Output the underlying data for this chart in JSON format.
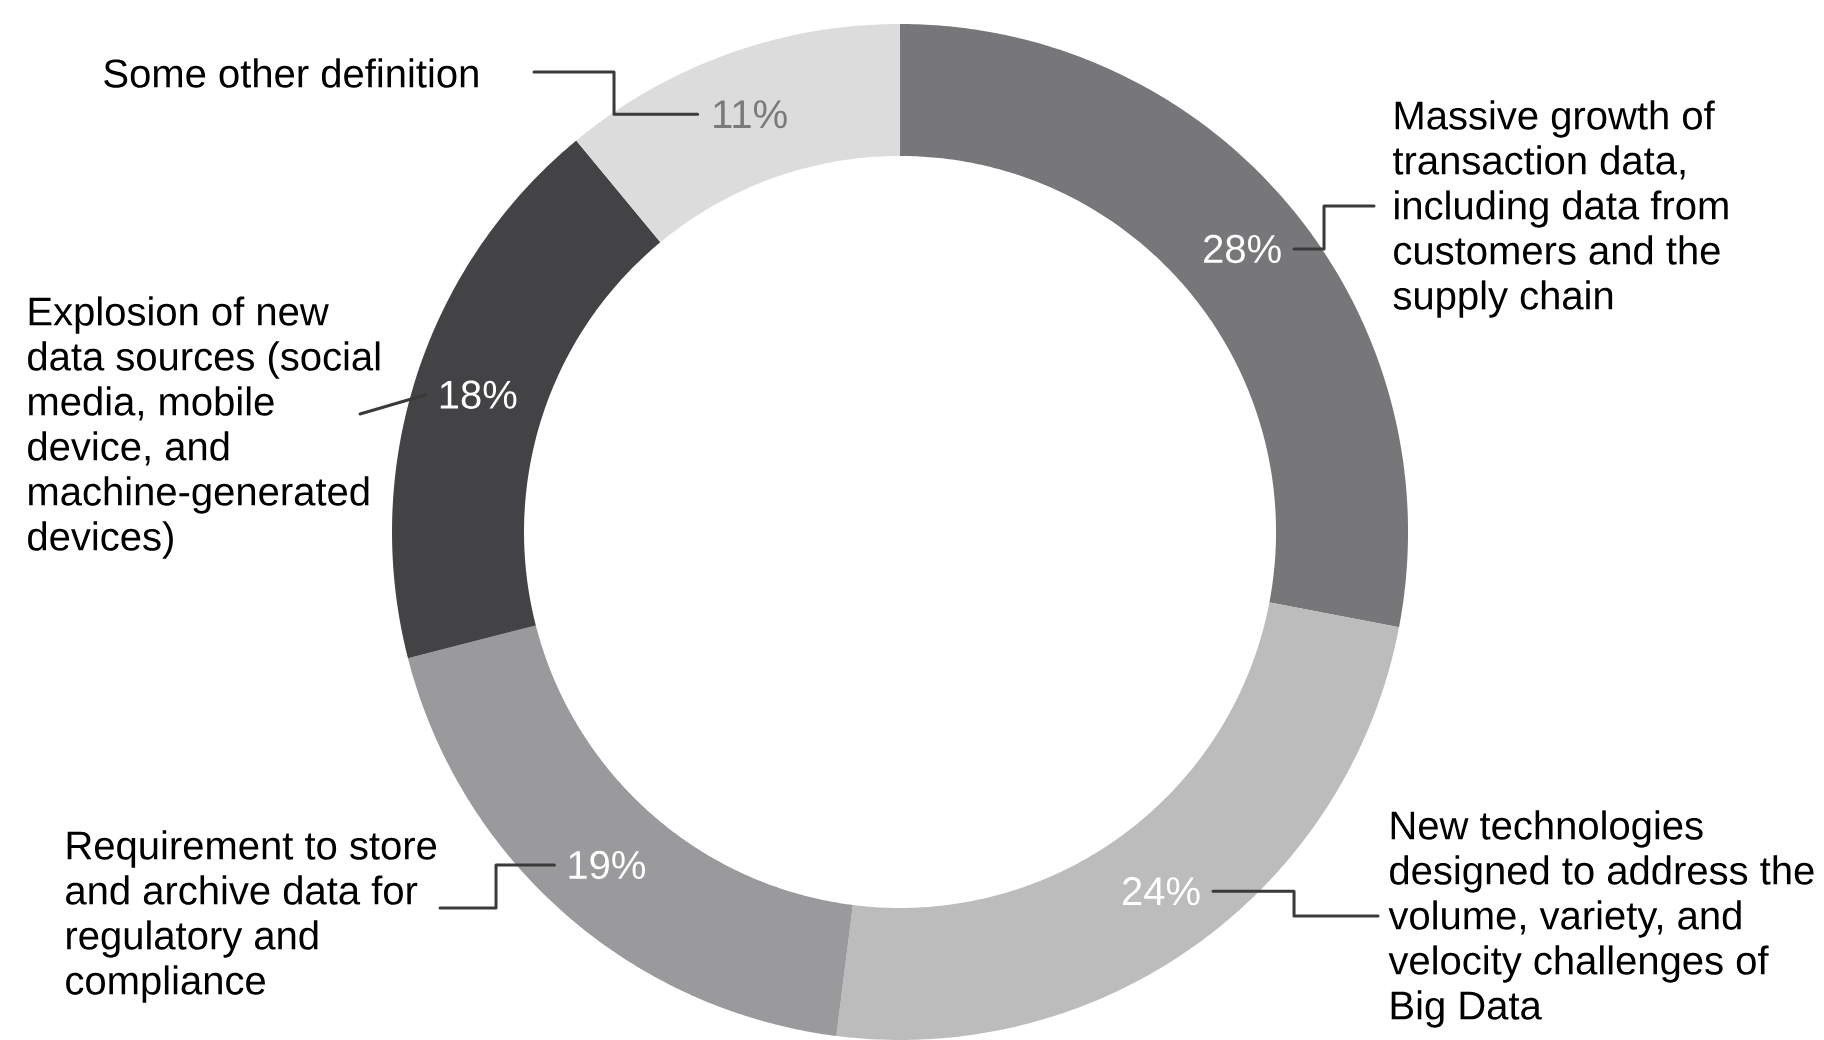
{
  "chart_data": {
    "type": "donut",
    "categories": [
      "Massive growth of transaction data, including data from customers and the supply chain",
      "New technologies designed to address the volume, variety, and velocity challenges of Big Data",
      "Requirement to store and archive data for regulatory and compliance",
      "Explosion of new data sources (social media, mobile device, and machine-generated devices)",
      "Some other definition"
    ],
    "values": [
      28,
      24,
      19,
      18,
      11
    ],
    "value_labels": [
      "28%",
      "24%",
      "19%",
      "18%",
      "11%"
    ],
    "colors": [
      "#77777a",
      "#bcbcbc",
      "#9a9a9c",
      "#434345",
      "#dcdcdc"
    ]
  }
}
